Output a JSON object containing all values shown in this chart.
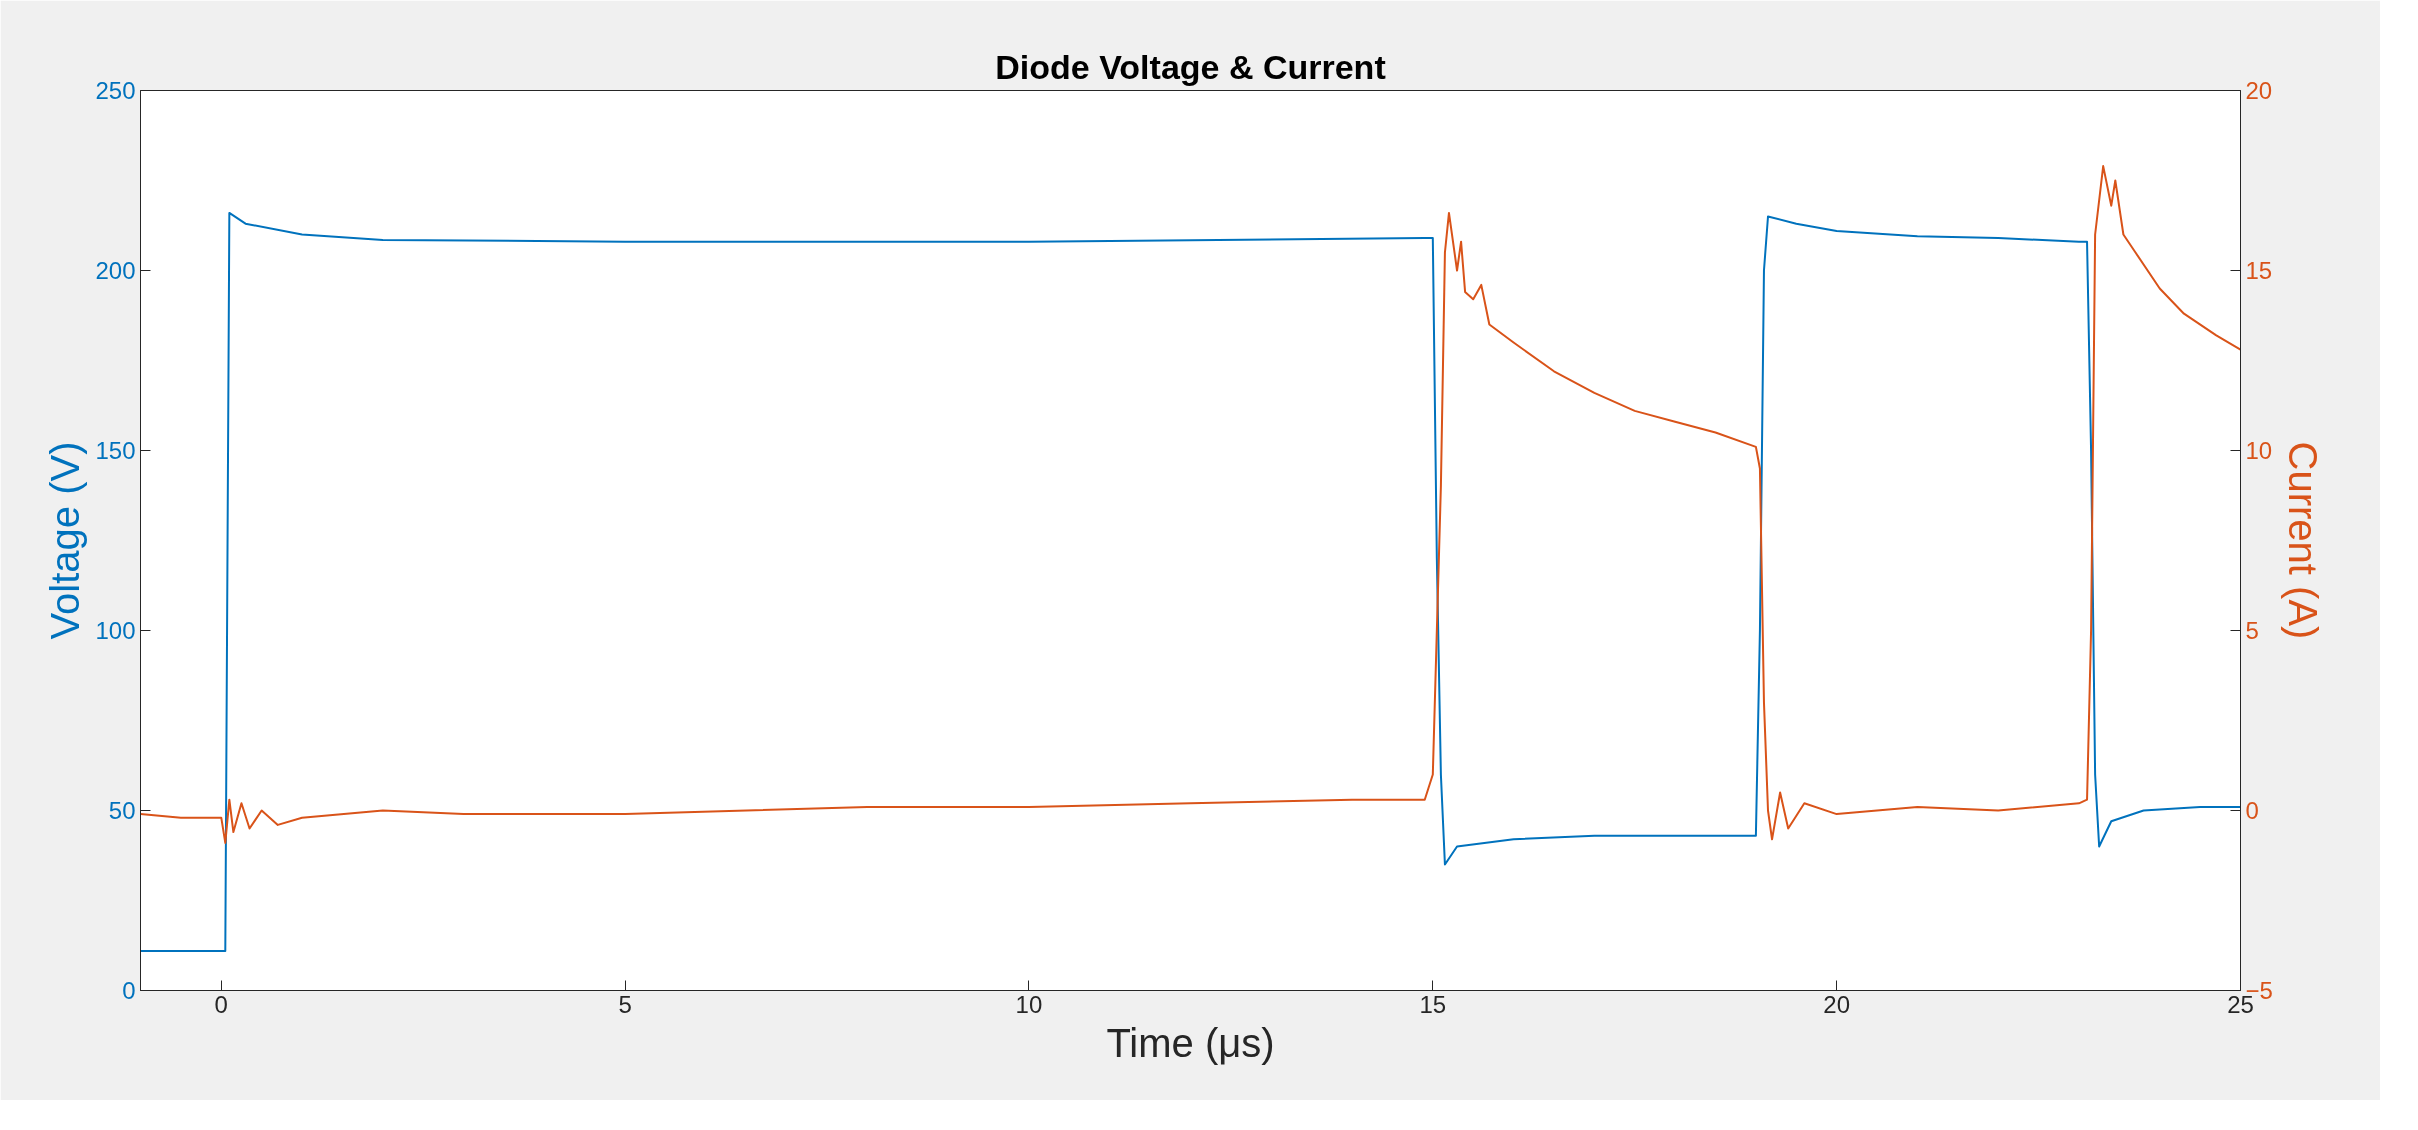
{
  "chart_data": {
    "type": "line",
    "title": "Diode Voltage & Current",
    "xlabel": "Time (μs)",
    "ylabel": "Voltage (V)",
    "y2label": "Current (A)",
    "xlim": [
      -1,
      25
    ],
    "xticks": [
      0,
      5,
      10,
      15,
      20,
      25
    ],
    "ylim": [
      0,
      250
    ],
    "yticks": [
      0,
      50,
      100,
      150,
      200,
      250
    ],
    "y2lim": [
      -5,
      20
    ],
    "y2ticks": [
      -5,
      0,
      5,
      10,
      15,
      20
    ],
    "grid": false,
    "series": [
      {
        "color": "#0072bd",
        "x": [
          -1,
          -0.5,
          0,
          0.05,
          0.1,
          0.3,
          1,
          2,
          5,
          10,
          14.9,
          15.0,
          15.05,
          15.1,
          15.15,
          15.3,
          16,
          17,
          18,
          19.0,
          19.05,
          19.1,
          19.15,
          19.5,
          20,
          21,
          22,
          23.0,
          23.1,
          23.15,
          23.2,
          23.25,
          23.4,
          23.8,
          24.5,
          25
        ],
        "values": [
          11,
          11,
          11,
          11,
          216,
          213,
          210,
          208.5,
          208,
          208,
          209,
          209,
          120,
          60,
          35,
          40,
          42,
          43,
          43,
          43,
          100,
          200,
          215,
          213,
          211,
          209.5,
          209,
          208,
          208,
          150,
          60,
          40,
          47,
          50,
          51,
          51
        ]
      },
      {
        "color": "#d95319",
        "axis": "y2",
        "x": [
          -1,
          -0.5,
          0,
          0.05,
          0.1,
          0.15,
          0.25,
          0.35,
          0.5,
          0.7,
          1,
          2,
          3,
          5,
          8,
          10,
          12,
          14,
          14.9,
          15.0,
          15.1,
          15.15,
          15.2,
          15.3,
          15.35,
          15.4,
          15.5,
          15.6,
          15.7,
          16,
          16.5,
          17,
          17.5,
          18,
          18.5,
          19.0,
          19.05,
          19.1,
          19.15,
          19.2,
          19.3,
          19.4,
          19.6,
          20,
          21,
          22,
          23.0,
          23.1,
          23.15,
          23.2,
          23.3,
          23.4,
          23.45,
          23.55,
          23.7,
          24,
          24.3,
          24.7,
          25
        ],
        "values": [
          -0.1,
          -0.2,
          -0.2,
          -0.9,
          0.3,
          -0.6,
          0.2,
          -0.5,
          0,
          -0.4,
          -0.2,
          0,
          -0.1,
          -0.1,
          0.1,
          0.1,
          0.2,
          0.3,
          0.3,
          1,
          9,
          15.5,
          16.6,
          15,
          15.8,
          14.4,
          14.2,
          14.6,
          13.5,
          13,
          12.2,
          11.6,
          11.1,
          10.8,
          10.5,
          10.1,
          9.5,
          3,
          0,
          -0.8,
          0.5,
          -0.5,
          0.2,
          -0.1,
          0.1,
          0,
          0.2,
          0.3,
          5,
          16,
          17.9,
          16.8,
          17.5,
          16,
          15.5,
          14.5,
          13.8,
          13.2,
          12.8
        ]
      }
    ]
  }
}
